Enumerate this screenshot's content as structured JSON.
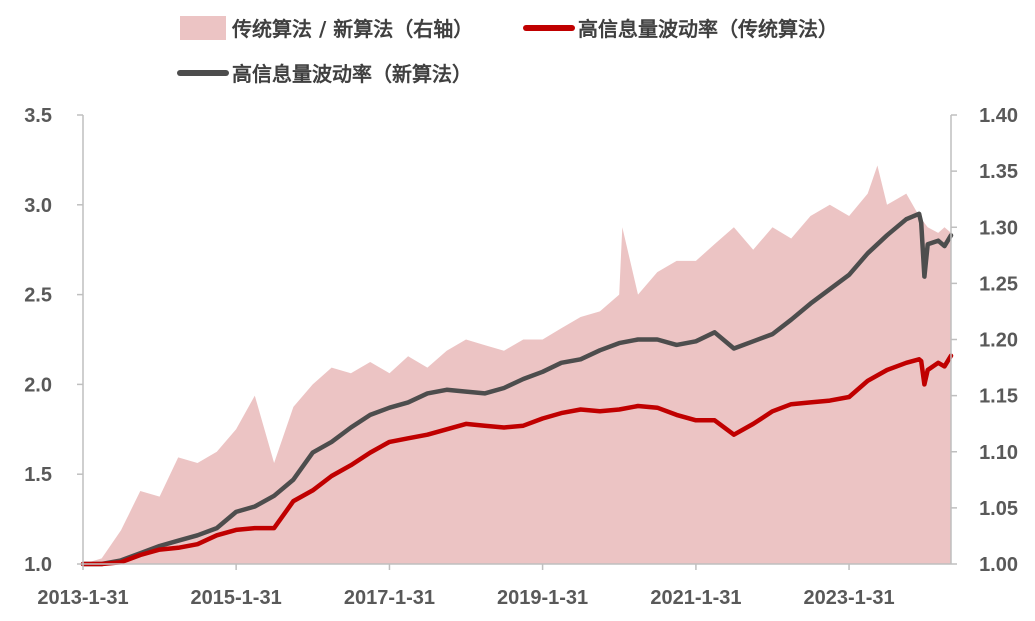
{
  "chart_data": {
    "type": "line",
    "legend": {
      "placement": "top",
      "entries": [
        {
          "key": "ratio",
          "label": "传统算法 / 新算法（右轴）",
          "kind": "area",
          "color": "#ecc4c4"
        },
        {
          "key": "traditional",
          "label": "高信息量波动率（传统算法）",
          "kind": "line",
          "color": "#c00000"
        },
        {
          "key": "new",
          "label": "高信息量波动率（新算法）",
          "kind": "line",
          "color": "#4d4d4d"
        }
      ]
    },
    "x": {
      "type": "date",
      "range": [
        "2013-01-31",
        "2024-05-31"
      ],
      "ticks": [
        "2013-01-31",
        "2015-01-31",
        "2017-01-31",
        "2019-01-31",
        "2021-01-31",
        "2023-01-31"
      ],
      "tick_labels": [
        "2013-1-31",
        "2015-1-31",
        "2017-1-31",
        "2019-1-31",
        "2021-1-31",
        "2023-1-31"
      ]
    },
    "y_left": {
      "range": [
        1.0,
        3.5
      ],
      "ticks": [
        1.0,
        1.5,
        2.0,
        2.5,
        3.0,
        3.5
      ],
      "tick_labels": [
        "1.0",
        "1.5",
        "2.0",
        "2.5",
        "3.0",
        "3.5"
      ]
    },
    "y_right": {
      "range": [
        1.0,
        1.4
      ],
      "ticks": [
        1.0,
        1.05,
        1.1,
        1.15,
        1.2,
        1.25,
        1.3,
        1.35,
        1.4
      ],
      "tick_labels": [
        "1.00",
        "1.05",
        "1.10",
        "1.15",
        "1.20",
        "1.25",
        "1.30",
        "1.35",
        "1.40"
      ]
    },
    "grid": false,
    "series": [
      {
        "name": "高信息量波动率（新算法）",
        "axis": "left",
        "color": "#4d4d4d",
        "points": [
          [
            "2013-01-31",
            1.0
          ],
          [
            "2013-04-30",
            1.0
          ],
          [
            "2013-07-31",
            1.02
          ],
          [
            "2013-10-31",
            1.06
          ],
          [
            "2014-01-31",
            1.1
          ],
          [
            "2014-04-30",
            1.13
          ],
          [
            "2014-07-31",
            1.16
          ],
          [
            "2014-10-31",
            1.2
          ],
          [
            "2015-01-31",
            1.29
          ],
          [
            "2015-04-30",
            1.32
          ],
          [
            "2015-07-31",
            1.38
          ],
          [
            "2015-10-31",
            1.47
          ],
          [
            "2016-01-31",
            1.62
          ],
          [
            "2016-04-30",
            1.68
          ],
          [
            "2016-07-31",
            1.76
          ],
          [
            "2016-10-31",
            1.83
          ],
          [
            "2017-01-31",
            1.87
          ],
          [
            "2017-04-30",
            1.9
          ],
          [
            "2017-07-31",
            1.95
          ],
          [
            "2017-10-31",
            1.97
          ],
          [
            "2018-01-31",
            1.96
          ],
          [
            "2018-04-30",
            1.95
          ],
          [
            "2018-07-31",
            1.98
          ],
          [
            "2018-10-31",
            2.03
          ],
          [
            "2019-01-31",
            2.07
          ],
          [
            "2019-04-30",
            2.12
          ],
          [
            "2019-07-31",
            2.14
          ],
          [
            "2019-10-31",
            2.19
          ],
          [
            "2020-01-31",
            2.23
          ],
          [
            "2020-04-30",
            2.25
          ],
          [
            "2020-07-31",
            2.25
          ],
          [
            "2020-10-31",
            2.22
          ],
          [
            "2021-01-31",
            2.24
          ],
          [
            "2021-04-30",
            2.29
          ],
          [
            "2021-07-31",
            2.2
          ],
          [
            "2021-10-31",
            2.24
          ],
          [
            "2022-01-31",
            2.28
          ],
          [
            "2022-04-30",
            2.36
          ],
          [
            "2022-07-31",
            2.45
          ],
          [
            "2022-10-31",
            2.53
          ],
          [
            "2023-01-31",
            2.61
          ],
          [
            "2023-04-30",
            2.73
          ],
          [
            "2023-07-31",
            2.83
          ],
          [
            "2023-10-31",
            2.92
          ],
          [
            "2023-12-31",
            2.95
          ],
          [
            "2024-01-10",
            2.9
          ],
          [
            "2024-01-25",
            2.6
          ],
          [
            "2024-02-10",
            2.78
          ],
          [
            "2024-03-31",
            2.8
          ],
          [
            "2024-04-30",
            2.77
          ],
          [
            "2024-05-31",
            2.83
          ]
        ]
      },
      {
        "name": "高信息量波动率（传统算法）",
        "axis": "left",
        "color": "#c00000",
        "points": [
          [
            "2013-01-31",
            1.0
          ],
          [
            "2013-04-30",
            1.0
          ],
          [
            "2013-07-31",
            1.01
          ],
          [
            "2013-10-31",
            1.05
          ],
          [
            "2014-01-31",
            1.08
          ],
          [
            "2014-04-30",
            1.09
          ],
          [
            "2014-07-31",
            1.11
          ],
          [
            "2014-10-31",
            1.16
          ],
          [
            "2015-01-31",
            1.19
          ],
          [
            "2015-04-30",
            1.2
          ],
          [
            "2015-07-31",
            1.2
          ],
          [
            "2015-10-31",
            1.35
          ],
          [
            "2016-01-31",
            1.41
          ],
          [
            "2016-04-30",
            1.49
          ],
          [
            "2016-07-31",
            1.55
          ],
          [
            "2016-10-31",
            1.62
          ],
          [
            "2017-01-31",
            1.68
          ],
          [
            "2017-04-30",
            1.7
          ],
          [
            "2017-07-31",
            1.72
          ],
          [
            "2017-10-31",
            1.75
          ],
          [
            "2018-01-31",
            1.78
          ],
          [
            "2018-04-30",
            1.77
          ],
          [
            "2018-07-31",
            1.76
          ],
          [
            "2018-10-31",
            1.77
          ],
          [
            "2019-01-31",
            1.81
          ],
          [
            "2019-04-30",
            1.84
          ],
          [
            "2019-07-31",
            1.86
          ],
          [
            "2019-10-31",
            1.85
          ],
          [
            "2020-01-31",
            1.86
          ],
          [
            "2020-04-30",
            1.88
          ],
          [
            "2020-07-31",
            1.87
          ],
          [
            "2020-10-31",
            1.83
          ],
          [
            "2021-01-31",
            1.8
          ],
          [
            "2021-04-30",
            1.8
          ],
          [
            "2021-07-31",
            1.72
          ],
          [
            "2021-10-31",
            1.78
          ],
          [
            "2022-01-31",
            1.85
          ],
          [
            "2022-04-30",
            1.89
          ],
          [
            "2022-07-31",
            1.9
          ],
          [
            "2022-10-31",
            1.91
          ],
          [
            "2023-01-31",
            1.93
          ],
          [
            "2023-04-30",
            2.02
          ],
          [
            "2023-07-31",
            2.08
          ],
          [
            "2023-10-31",
            2.12
          ],
          [
            "2023-12-31",
            2.14
          ],
          [
            "2024-01-10",
            2.13
          ],
          [
            "2024-01-25",
            2.0
          ],
          [
            "2024-02-10",
            2.08
          ],
          [
            "2024-03-31",
            2.12
          ],
          [
            "2024-04-30",
            2.1
          ],
          [
            "2024-05-31",
            2.16
          ]
        ]
      },
      {
        "name": "传统算法 / 新算法（右轴）",
        "axis": "right",
        "color": "#ecc4c4",
        "points": [
          [
            "2013-01-31",
            1.0
          ],
          [
            "2013-04-30",
            1.005
          ],
          [
            "2013-07-31",
            1.03
          ],
          [
            "2013-10-31",
            1.065
          ],
          [
            "2014-01-31",
            1.06
          ],
          [
            "2014-04-30",
            1.095
          ],
          [
            "2014-07-31",
            1.09
          ],
          [
            "2014-10-31",
            1.1
          ],
          [
            "2015-01-31",
            1.12
          ],
          [
            "2015-04-30",
            1.15
          ],
          [
            "2015-07-31",
            1.09
          ],
          [
            "2015-10-31",
            1.14
          ],
          [
            "2016-01-31",
            1.16
          ],
          [
            "2016-04-30",
            1.175
          ],
          [
            "2016-07-31",
            1.17
          ],
          [
            "2016-10-31",
            1.18
          ],
          [
            "2017-01-31",
            1.17
          ],
          [
            "2017-04-30",
            1.185
          ],
          [
            "2017-07-31",
            1.175
          ],
          [
            "2017-10-31",
            1.19
          ],
          [
            "2018-01-31",
            1.2
          ],
          [
            "2018-04-30",
            1.195
          ],
          [
            "2018-07-31",
            1.19
          ],
          [
            "2018-10-31",
            1.2
          ],
          [
            "2019-01-31",
            1.2
          ],
          [
            "2019-04-30",
            1.21
          ],
          [
            "2019-07-31",
            1.22
          ],
          [
            "2019-10-31",
            1.225
          ],
          [
            "2020-01-31",
            1.24
          ],
          [
            "2020-02-15",
            1.3
          ],
          [
            "2020-04-30",
            1.24
          ],
          [
            "2020-07-31",
            1.26
          ],
          [
            "2020-10-31",
            1.27
          ],
          [
            "2021-01-31",
            1.27
          ],
          [
            "2021-04-30",
            1.285
          ],
          [
            "2021-07-31",
            1.3
          ],
          [
            "2021-10-31",
            1.28
          ],
          [
            "2022-01-31",
            1.3
          ],
          [
            "2022-04-30",
            1.29
          ],
          [
            "2022-07-31",
            1.31
          ],
          [
            "2022-10-31",
            1.32
          ],
          [
            "2023-01-31",
            1.31
          ],
          [
            "2023-04-30",
            1.33
          ],
          [
            "2023-06-15",
            1.355
          ],
          [
            "2023-07-31",
            1.32
          ],
          [
            "2023-10-31",
            1.33
          ],
          [
            "2023-12-31",
            1.31
          ],
          [
            "2024-02-10",
            1.3
          ],
          [
            "2024-03-31",
            1.295
          ],
          [
            "2024-04-30",
            1.3
          ],
          [
            "2024-05-31",
            1.295
          ]
        ]
      }
    ]
  }
}
